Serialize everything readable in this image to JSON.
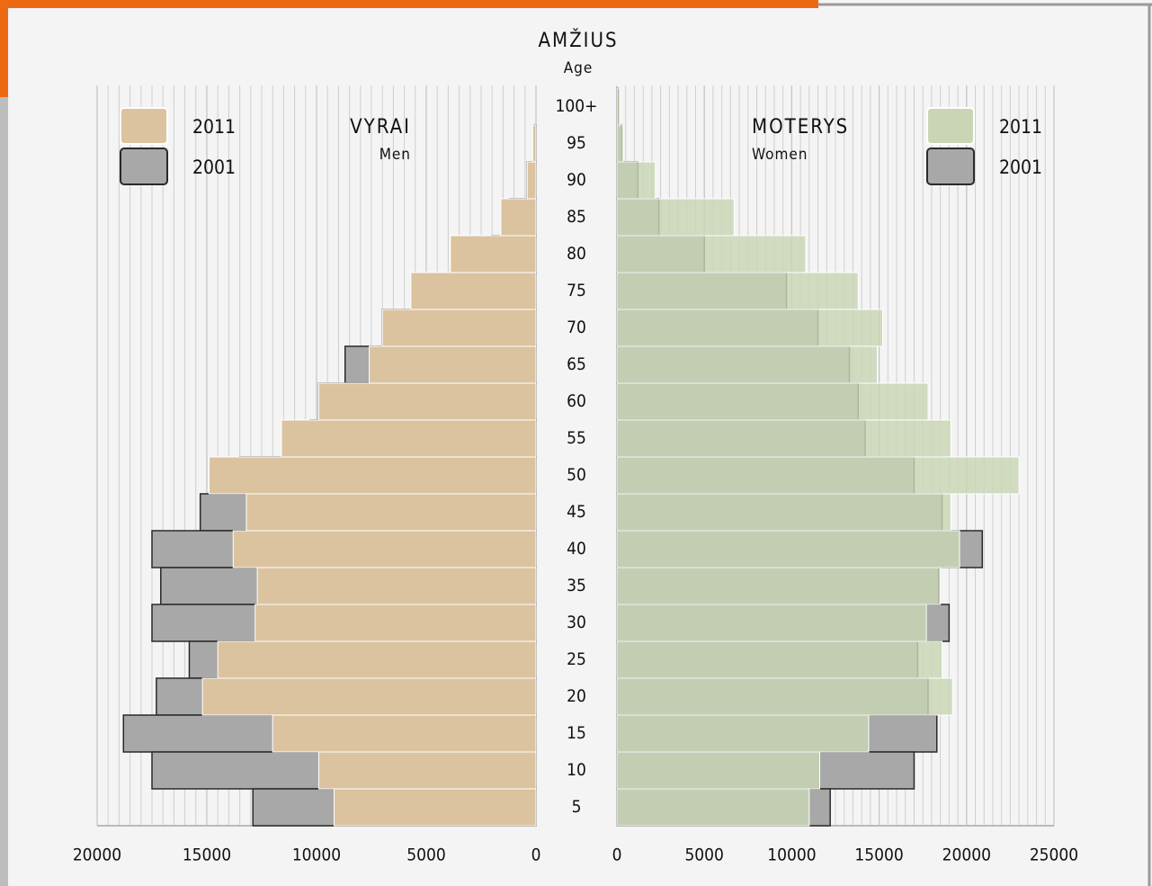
{
  "chart_data": {
    "type": "population_pyramid",
    "title": "AMŽIUS",
    "subtitle": "Age",
    "categories": [
      "100+",
      "95",
      "90",
      "85",
      "80",
      "75",
      "70",
      "65",
      "60",
      "55",
      "50",
      "45",
      "40",
      "35",
      "30",
      "25",
      "20",
      "15",
      "10",
      "5"
    ],
    "grid": true,
    "panels": [
      {
        "title": "VYRAI",
        "subtitle": "Men",
        "xlim": [
          0,
          20000
        ],
        "xticks": [
          20000,
          15000,
          10000,
          5000,
          0
        ],
        "series": [
          {
            "name": "2001",
            "color": "#a8a8a8",
            "values": [
              0,
              100,
              400,
              1200,
              2000,
              3900,
              7000,
              8700,
              9900,
              10300,
              13500,
              15300,
              17500,
              17100,
              17500,
              15800,
              17300,
              18800,
              17500,
              12900
            ]
          },
          {
            "name": "2011",
            "color": "#dbc3a0",
            "values": [
              0,
              150,
              400,
              1600,
              3900,
              5700,
              7000,
              7600,
              9900,
              11600,
              14900,
              13200,
              13800,
              12700,
              12800,
              14500,
              15200,
              12000,
              9900,
              9200
            ]
          }
        ]
      },
      {
        "title": "MOTERYS",
        "subtitle": "Women",
        "xlim": [
          0,
          25000
        ],
        "xticks": [
          0,
          5000,
          10000,
          15000,
          20000,
          25000
        ],
        "series": [
          {
            "name": "2001",
            "color": "#a8a8a8",
            "values": [
              100,
              300,
              1200,
              2400,
              5000,
              9700,
              11500,
              13300,
              13800,
              14200,
              17000,
              18600,
              20900,
              18400,
              19000,
              17200,
              17800,
              18300,
              17000,
              12200
            ]
          },
          {
            "name": "2011",
            "color": "#c9d5b5",
            "values": [
              150,
              350,
              2200,
              6700,
              10800,
              13800,
              15200,
              14900,
              17800,
              19100,
              23000,
              19100,
              19600,
              18500,
              17700,
              18600,
              19200,
              14400,
              11600,
              11000
            ]
          }
        ]
      }
    ]
  }
}
